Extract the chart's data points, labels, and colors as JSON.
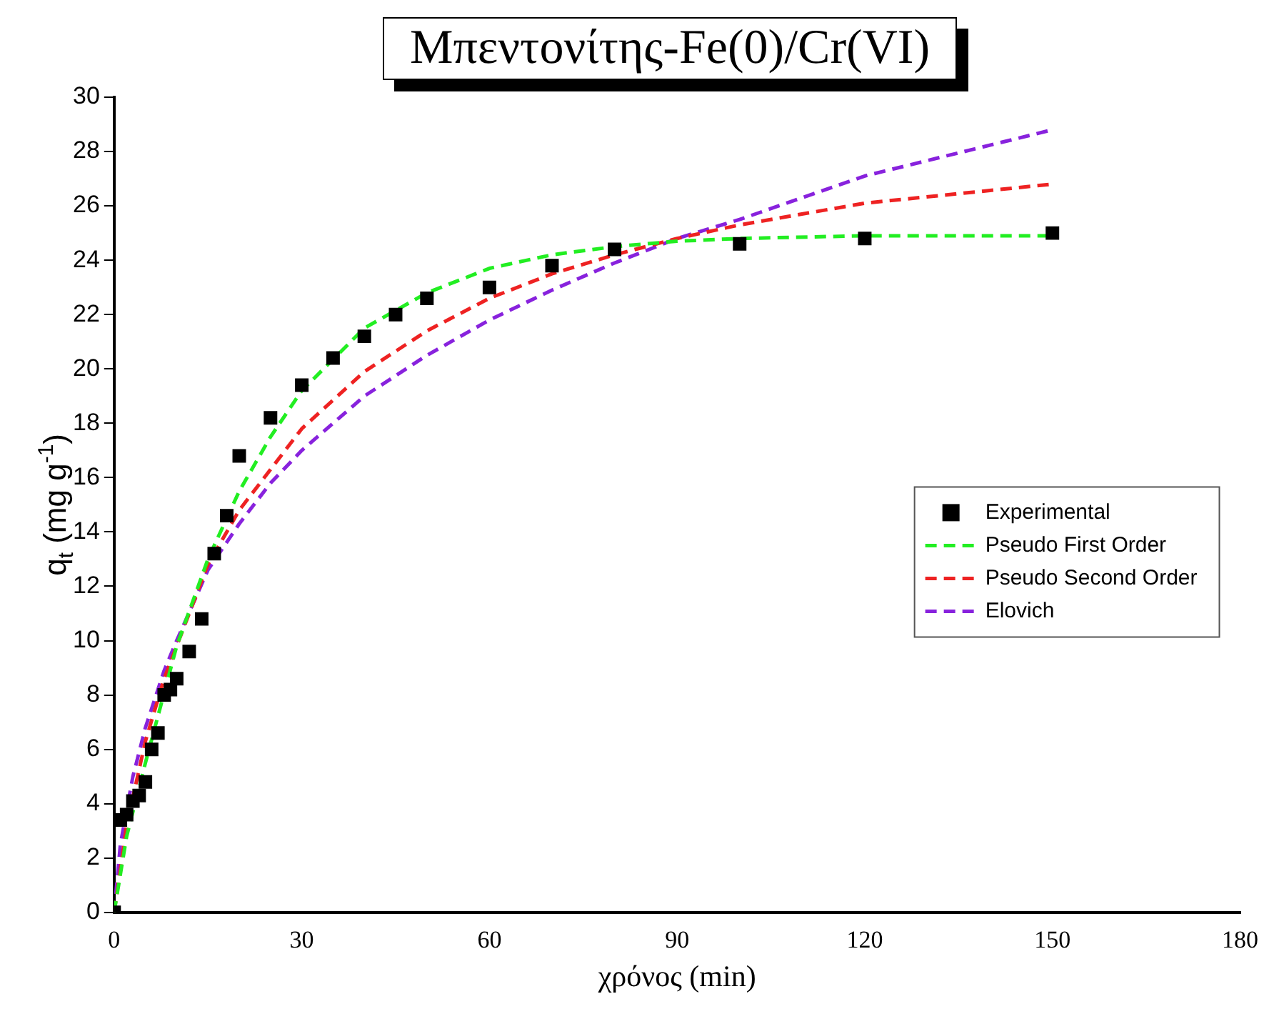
{
  "chart_data": {
    "type": "line",
    "title": "Μπεντονίτης-Fe(0)/Cr(VI)",
    "xlabel": "χρόνος (min)",
    "ylabel": "q$_{t}$ (mg g$^{-1}$)",
    "xlim": [
      0,
      180
    ],
    "xticks": [
      0,
      30,
      60,
      90,
      120,
      150,
      180
    ],
    "ylim": [
      0,
      30
    ],
    "yticks": [
      0,
      2,
      4,
      6,
      8,
      10,
      12,
      14,
      16,
      18,
      20,
      22,
      24,
      26,
      28,
      30
    ],
    "grid": false,
    "legend": "right",
    "series": [
      {
        "name": "Experimental",
        "type": "scatter",
        "color": "#000000",
        "marker": "square",
        "x": [
          0,
          1,
          2,
          3,
          4,
          5,
          6,
          7,
          8,
          9,
          10,
          12,
          14,
          16,
          18,
          20,
          25,
          30,
          35,
          40,
          45,
          50,
          60,
          70,
          80,
          100,
          120,
          150
        ],
        "values": [
          0,
          3.4,
          3.6,
          4.1,
          4.3,
          4.8,
          6.0,
          6.6,
          8.0,
          8.2,
          8.6,
          9.6,
          10.8,
          13.2,
          14.6,
          16.8,
          18.2,
          19.4,
          20.4,
          21.2,
          22.0,
          22.6,
          23.0,
          23.8,
          24.4,
          24.6,
          24.8,
          25.0
        ]
      },
      {
        "name": "Pseudo First Order",
        "type": "line",
        "color": "#22ee22",
        "marker": "none",
        "line_style": "dashed",
        "x": [
          0,
          2,
          5,
          10,
          15,
          20,
          25,
          30,
          40,
          50,
          60,
          70,
          80,
          90,
          100,
          120,
          150
        ],
        "values": [
          0,
          2.8,
          5.5,
          9.8,
          13,
          15.5,
          17.5,
          19.2,
          21.5,
          22.8,
          23.7,
          24.2,
          24.5,
          24.7,
          24.8,
          24.9,
          24.9
        ]
      },
      {
        "name": "Pseudo Second Order",
        "type": "line",
        "color": "#ee2222",
        "marker": "none",
        "line_style": "dashed",
        "x": [
          0,
          2,
          5,
          8,
          10,
          15,
          20,
          25,
          30,
          40,
          50,
          60,
          70,
          80,
          90,
          100,
          120,
          150
        ],
        "values": [
          0,
          3.2,
          6.3,
          8.6,
          9.8,
          12.8,
          14.8,
          16.3,
          17.8,
          19.9,
          21.4,
          22.6,
          23.5,
          24.2,
          24.8,
          25.3,
          26.1,
          26.8
        ]
      },
      {
        "name": "Elovich",
        "type": "line",
        "color": "#8822dd",
        "marker": "none",
        "line_style": "dashed",
        "x": [
          0,
          1,
          3,
          5,
          8,
          10,
          15,
          20,
          25,
          30,
          40,
          50,
          60,
          70,
          80,
          90,
          100,
          120,
          150
        ],
        "values": [
          0,
          2.5,
          5.0,
          6.8,
          8.9,
          10,
          12.6,
          14.3,
          15.8,
          17,
          19,
          20.5,
          21.8,
          22.9,
          23.9,
          24.8,
          25.5,
          27.1,
          28.8
        ]
      }
    ]
  }
}
